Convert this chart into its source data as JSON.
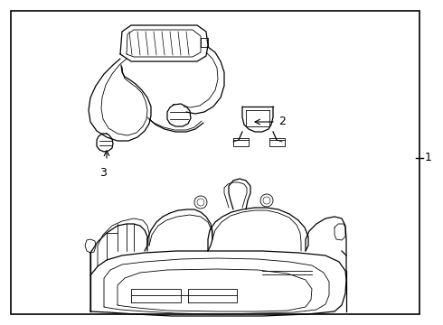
{
  "background_color": "#ffffff",
  "border_color": "#000000",
  "line_color": "#000000",
  "label_1": "1",
  "label_2": "2",
  "label_3": "3",
  "label_fontsize": 9,
  "fig_width": 4.9,
  "fig_height": 3.6,
  "dpi": 100
}
